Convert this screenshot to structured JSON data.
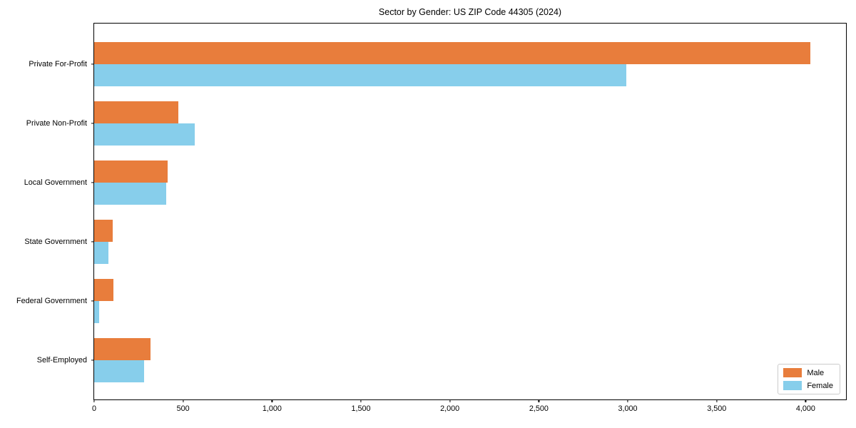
{
  "chart_data": {
    "type": "bar",
    "orientation": "horizontal",
    "title": "Sector by Gender: US ZIP Code 44305 (2024)",
    "categories": [
      "Private For-Profit",
      "Private Non-Profit",
      "Local Government",
      "State Government",
      "Federal Government",
      "Self-Employed"
    ],
    "series": [
      {
        "name": "Male",
        "color": "#e87d3c",
        "values": [
          4025,
          475,
          412,
          105,
          109,
          315
        ]
      },
      {
        "name": "Female",
        "color": "#87ceeb",
        "values": [
          2990,
          567,
          407,
          81,
          30,
          281
        ]
      }
    ],
    "xlabel": "",
    "ylabel": "",
    "xlim": [
      0,
      4235
    ],
    "xticks": [
      0,
      500,
      1000,
      1500,
      2000,
      2500,
      3000,
      3500,
      4000
    ],
    "grid": false,
    "legend_position": "lower right",
    "colors": {
      "spine": "#000000",
      "legend_border": "#cccccc",
      "text": "#000000",
      "background": "#ffffff"
    }
  }
}
